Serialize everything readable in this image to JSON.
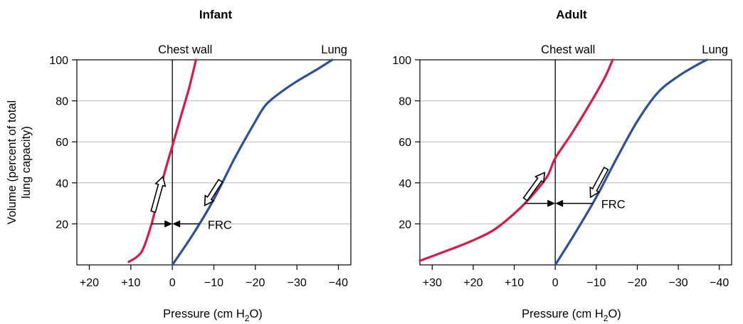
{
  "chart_data": [
    {
      "type": "line",
      "title": "Infant",
      "xlabel": "Pressure (cm H",
      "xlabel_sub": "2",
      "xlabel_end": "O)",
      "ylabel": [
        "Volume (percent of total",
        "lung capacity)"
      ],
      "xlim": [
        23,
        -43
      ],
      "ylim": [
        0,
        100
      ],
      "xticks": [
        20,
        10,
        0,
        -10,
        -20,
        -30,
        -40
      ],
      "xtick_labels": [
        "+20",
        "+10",
        "0",
        "−10",
        "−20",
        "−30",
        "−40"
      ],
      "yticks": [
        20,
        40,
        60,
        80,
        100
      ],
      "ytick_labels": [
        "20",
        "40",
        "60",
        "80",
        "100"
      ],
      "grid": true,
      "vline_x": 0,
      "labels": {
        "chest_wall": "Chest wall",
        "lung": "Lung",
        "frc": "FRC"
      },
      "frc_volume": 20,
      "series": [
        {
          "name": "Chest wall",
          "color": "#d91a46",
          "x": [
            10.5,
            8.5,
            7,
            5,
            3.5,
            2,
            0,
            -2,
            -4,
            -5.7
          ],
          "y": [
            1.5,
            4,
            8,
            20,
            32,
            44,
            58,
            72,
            86,
            100
          ]
        },
        {
          "name": "Lung",
          "color": "#2a509e",
          "x": [
            0,
            -5,
            -10,
            -15,
            -20,
            -22.5,
            -26,
            -30,
            -35,
            -38.5
          ],
          "y": [
            0,
            15,
            32,
            52,
            70,
            78,
            84,
            89.5,
            95.5,
            100
          ]
        }
      ],
      "arrows": [
        {
          "series": "Chest wall",
          "direction": "up",
          "x0": 4.6,
          "y0": 26,
          "x1": 2.3,
          "y1": 43
        },
        {
          "series": "Lung",
          "direction": "down",
          "x0": -11.6,
          "y0": 41,
          "x1": -7.8,
          "y1": 29
        }
      ]
    },
    {
      "type": "line",
      "title": "Adult",
      "xlabel": "Pressure (cm H",
      "xlabel_sub": "2",
      "xlabel_end": "O)",
      "xlim": [
        33,
        -43
      ],
      "ylim": [
        0,
        100
      ],
      "xticks": [
        30,
        20,
        10,
        0,
        -10,
        -20,
        -30,
        -40
      ],
      "xtick_labels": [
        "+30",
        "+20",
        "+10",
        "0",
        "−10",
        "−20",
        "−30",
        "−40"
      ],
      "yticks": [
        20,
        40,
        60,
        80,
        100
      ],
      "ytick_labels": [
        "20",
        "40",
        "60",
        "80",
        "100"
      ],
      "grid": true,
      "vline_x": 0,
      "labels": {
        "chest_wall": "Chest wall",
        "lung": "Lung",
        "frc": "FRC"
      },
      "frc_volume": 30,
      "series": [
        {
          "name": "Chest wall",
          "color": "#d91a46",
          "x": [
            33,
            25,
            20,
            15,
            10,
            6,
            2,
            0,
            -4,
            -8,
            -12,
            -14
          ],
          "y": [
            2,
            8,
            12,
            17,
            25,
            33,
            43,
            52,
            64,
            77,
            91,
            100
          ]
        },
        {
          "name": "Lung",
          "color": "#2a509e",
          "x": [
            0,
            -5,
            -10,
            -15,
            -20,
            -25,
            -30,
            -35,
            -37
          ],
          "y": [
            0,
            16,
            33,
            52,
            70,
            84,
            92,
            98,
            100
          ]
        }
      ],
      "arrows": [
        {
          "series": "Chest wall",
          "direction": "up",
          "x0": 7.3,
          "y0": 32,
          "x1": 2.6,
          "y1": 45
        },
        {
          "series": "Lung",
          "direction": "down",
          "x0": -12.4,
          "y0": 47,
          "x1": -8.6,
          "y1": 33
        }
      ]
    }
  ]
}
